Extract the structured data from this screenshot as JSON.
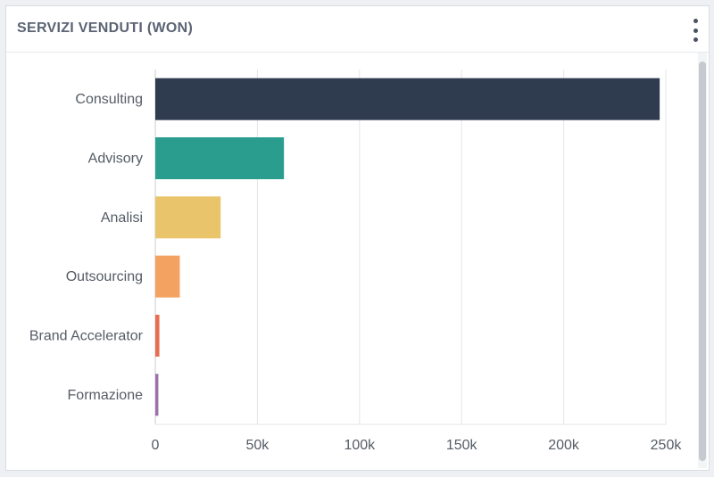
{
  "widget": {
    "title": "SERVIZI VENDUTI (WON)",
    "menu_icon": "kebab-menu-icon"
  },
  "chart_data": {
    "type": "bar",
    "orientation": "horizontal",
    "categories": [
      "Consulting",
      "Advisory",
      "Analisi",
      "Outsourcing",
      "Brand Accelerator",
      "Formazione"
    ],
    "values": [
      247000,
      63000,
      32000,
      12000,
      2000,
      1500
    ],
    "colors": [
      "#2f3b4e",
      "#2a9d8f",
      "#e9c46a",
      "#f4a261",
      "#e76f51",
      "#9b72aa"
    ],
    "xticks": [
      {
        "value": 0,
        "label": "0"
      },
      {
        "value": 50000,
        "label": "50k"
      },
      {
        "value": 100000,
        "label": "100k"
      },
      {
        "value": 150000,
        "label": "150k"
      },
      {
        "value": 200000,
        "label": "200k"
      },
      {
        "value": 250000,
        "label": "250k"
      }
    ],
    "xlim": [
      0,
      250000
    ],
    "grid": true,
    "title": "",
    "xlabel": "",
    "ylabel": ""
  }
}
